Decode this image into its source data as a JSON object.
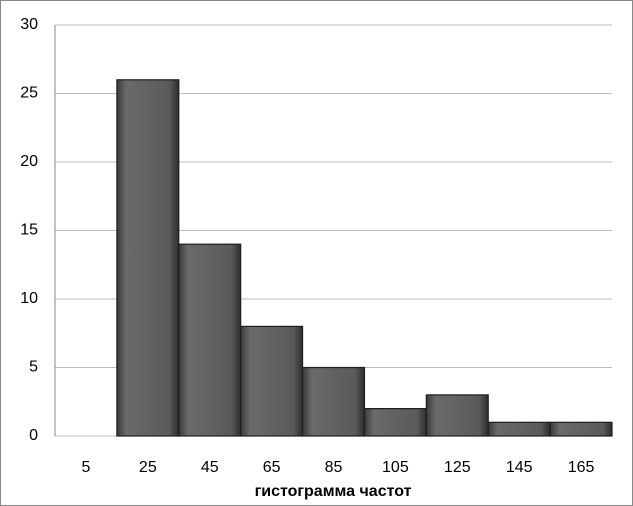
{
  "chart_data": {
    "type": "bar",
    "x_label": "гистограмма частот",
    "categories": [
      "5",
      "25",
      "45",
      "65",
      "85",
      "105",
      "125",
      "145",
      "165"
    ],
    "values": [
      0,
      26,
      14,
      8,
      5,
      2,
      3,
      1,
      1
    ],
    "color": "#5e5e5e",
    "ylim": [
      0,
      30
    ],
    "yticks": [
      0,
      5,
      10,
      15,
      20,
      25,
      30
    ],
    "grid": true
  }
}
